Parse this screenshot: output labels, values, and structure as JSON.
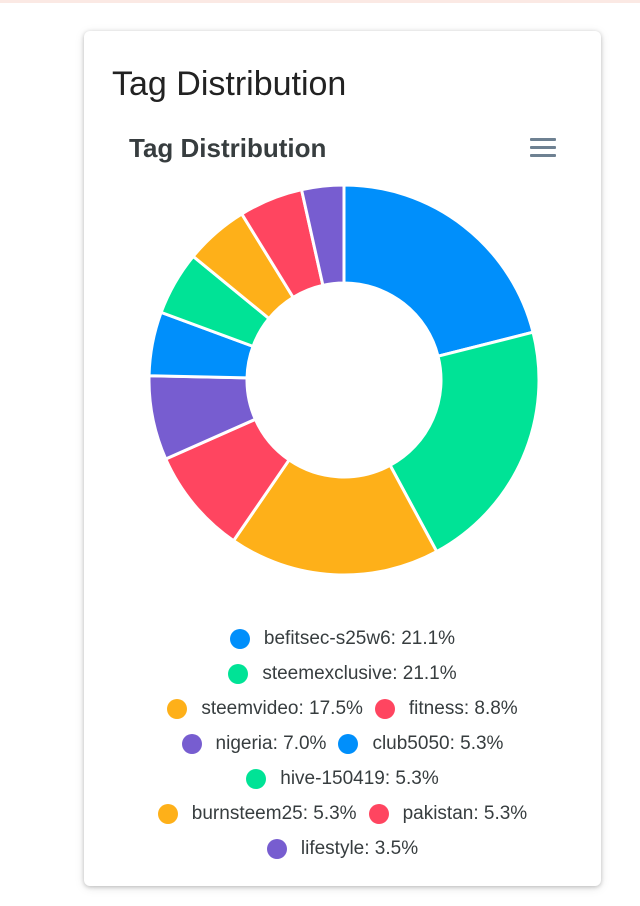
{
  "card": {
    "title": "Tag Distribution"
  },
  "chart_data": {
    "type": "pie",
    "variant": "donut",
    "title": "Tag Distribution",
    "legend_position": "bottom",
    "start_angle_deg": 0,
    "direction": "clockwise",
    "series": [
      {
        "name": "befitsec-s25w6",
        "value": 21.1,
        "label": "befitsec-s25w6: 21.1%",
        "color": "#008ffb"
      },
      {
        "name": "steemexclusive",
        "value": 21.1,
        "label": "steemexclusive: 21.1%",
        "color": "#00e396"
      },
      {
        "name": "steemvideo",
        "value": 17.5,
        "label": "steemvideo: 17.5%",
        "color": "#feb019"
      },
      {
        "name": "fitness",
        "value": 8.8,
        "label": "fitness: 8.8%",
        "color": "#ff4560"
      },
      {
        "name": "nigeria",
        "value": 7.0,
        "label": "nigeria: 7.0%",
        "color": "#775dd0"
      },
      {
        "name": "club5050",
        "value": 5.3,
        "label": "club5050: 5.3%",
        "color": "#008ffb"
      },
      {
        "name": "hive-150419",
        "value": 5.3,
        "label": "hive-150419: 5.3%",
        "color": "#00e396"
      },
      {
        "name": "burnsteem25",
        "value": 5.3,
        "label": "burnsteem25: 5.3%",
        "color": "#feb019"
      },
      {
        "name": "pakistan",
        "value": 5.3,
        "label": "pakistan: 5.3%",
        "color": "#ff4560"
      },
      {
        "name": "lifestyle",
        "value": 3.5,
        "label": "lifestyle: 3.5%",
        "color": "#775dd0"
      }
    ],
    "legend_rows": [
      [
        0
      ],
      [
        1
      ],
      [
        2,
        3
      ],
      [
        4,
        5
      ],
      [
        6
      ],
      [
        7,
        8
      ],
      [
        9
      ]
    ]
  },
  "icons": {
    "menu": "hamburger-menu-icon"
  }
}
